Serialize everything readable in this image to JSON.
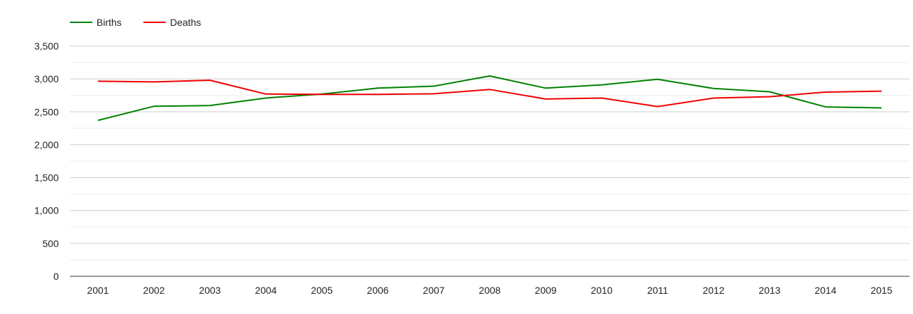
{
  "chart_data": {
    "type": "line",
    "title": "",
    "xlabel": "",
    "ylabel": "",
    "categories": [
      "2001",
      "2002",
      "2003",
      "2004",
      "2005",
      "2006",
      "2007",
      "2008",
      "2009",
      "2010",
      "2011",
      "2012",
      "2013",
      "2014",
      "2015"
    ],
    "series": [
      {
        "name": "Births",
        "color": "#008000",
        "values": [
          2370,
          2585,
          2595,
          2710,
          2770,
          2860,
          2890,
          3045,
          2860,
          2910,
          2995,
          2855,
          2805,
          2575,
          2560
        ]
      },
      {
        "name": "Deaths",
        "color": "#ee0000",
        "values": [
          2965,
          2955,
          2980,
          2770,
          2765,
          2765,
          2775,
          2840,
          2695,
          2710,
          2580,
          2710,
          2730,
          2800,
          2815
        ]
      }
    ],
    "ylim": [
      0,
      3500
    ],
    "yticks": [
      0,
      500,
      1000,
      1500,
      2000,
      2500,
      3000,
      3500
    ],
    "ytick_labels": [
      "0",
      "500",
      "1,000",
      "1,500",
      "2,000",
      "2,500",
      "3,000",
      "3,500"
    ],
    "grid": true,
    "legend_position": "top-left"
  }
}
